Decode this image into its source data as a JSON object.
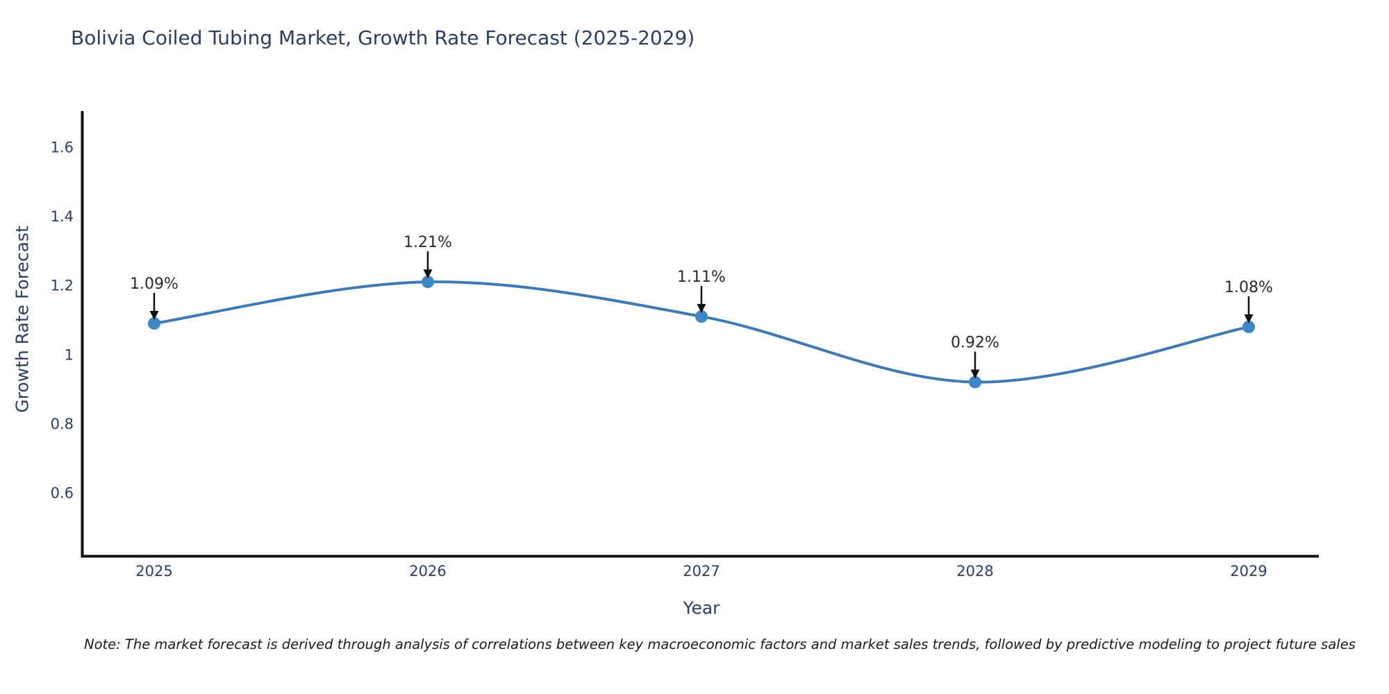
{
  "chart_data": {
    "type": "line",
    "title": "Bolivia Coiled Tubing Market, Growth Rate Forecast (2025-2029)",
    "xlabel": "Year",
    "ylabel": "Growth Rate Forecast",
    "categories": [
      2025,
      2026,
      2027,
      2028,
      2029
    ],
    "series": [
      {
        "name": "Growth Rate Forecast",
        "values": [
          1.09,
          1.21,
          1.11,
          0.92,
          1.08
        ],
        "point_labels": [
          "1.09%",
          "1.21%",
          "1.11%",
          "0.92%",
          "1.08%"
        ]
      }
    ],
    "yticks": [
      0.6,
      0.8,
      1,
      1.2,
      1.4,
      1.6
    ],
    "ylim": [
      0.42,
      1.7
    ],
    "xlim": [
      2024.7,
      2029.26
    ],
    "grid": false,
    "legend_position": "none",
    "line_shape": "spline",
    "marker_style": "circle",
    "colors": {
      "line": "#3e79b2",
      "marker": "#3e87c6",
      "axis": "#111111",
      "axis_text": "#2a3f5f",
      "annotation_text": "#2a2a2a",
      "annotation_arrow": "#111111",
      "background": "#ffffff"
    },
    "note": "Note: The market forecast is derived through analysis of correlations between key macroeconomic factors and market sales trends, followed by predictive modeling to project future sales"
  }
}
